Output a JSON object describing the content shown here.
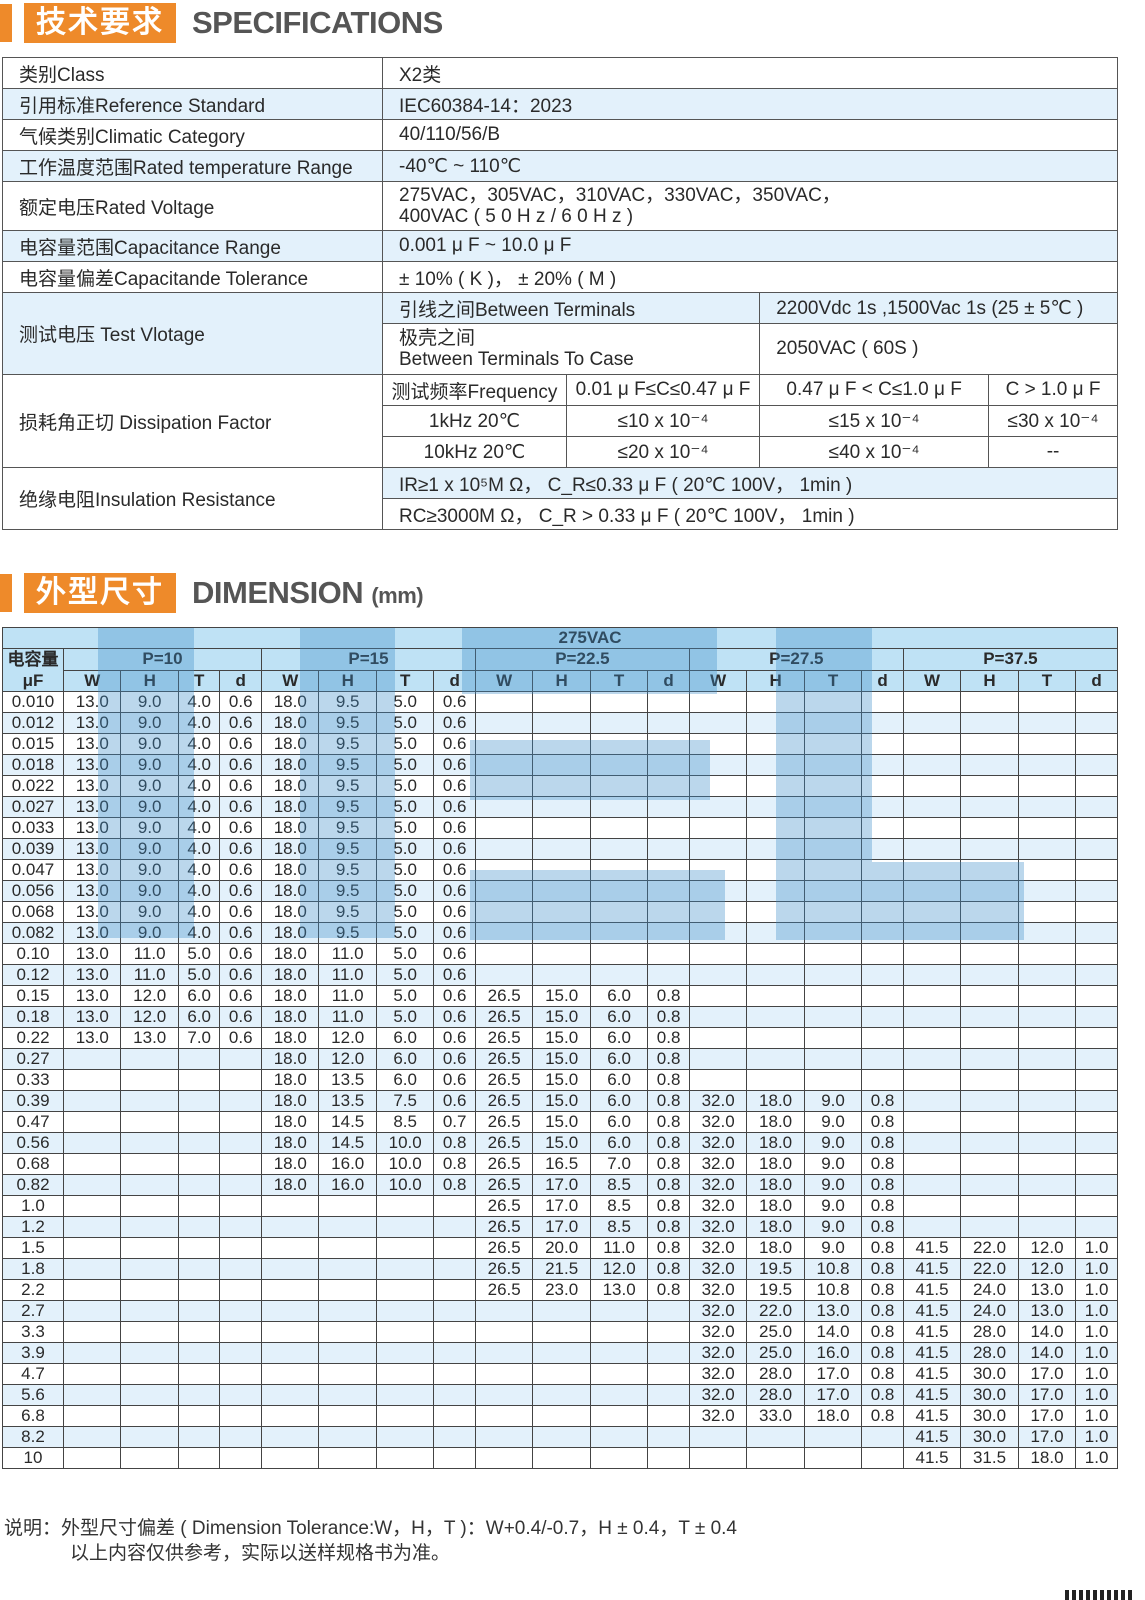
{
  "specifications": {
    "title_cn": "技术要求",
    "title_en": "SPECIFICATIONS",
    "rows": [
      {
        "label": "类别Class",
        "value": "X2类"
      },
      {
        "label": "引用标准Reference Standard",
        "value": "IEC60384-14：2023"
      },
      {
        "label": "气候类别Climatic Category",
        "value": "40/110/56/B"
      },
      {
        "label": "工作温度范围Rated temperature Range",
        "value": "-40℃ ~ 110℃"
      },
      {
        "label": "额定电压Rated Voltage",
        "value": "275VAC，305VAC，310VAC，330VAC，350VAC，",
        "value2": "400VAC ( 5 0 H z / 6 0 H z )"
      },
      {
        "label": "电容量范围Capacitance Range",
        "value": "0.001 μ F ~ 10.0 μ F"
      },
      {
        "label": "电容量偏差Capacitande Tolerance",
        "value": "± 10% ( K )， ± 20% ( M )"
      }
    ],
    "test_voltage": {
      "label": "测试电压 Test Vlotage",
      "rows": [
        {
          "condition": "引线之间Between Terminals",
          "value": "2200Vdc 1s ,1500Vac 1s (25 ± 5℃ )"
        },
        {
          "condition": "极壳之间",
          "condition2": "Between Terminals To Case",
          "value": "2050VAC ( 60S )"
        }
      ]
    },
    "dissipation": {
      "label": "损耗角正切 Dissipation Factor",
      "headers": [
        "测试频率Frequency",
        "0.01 μ F≤C≤0.47 μ F",
        "0.47 μ F < C≤1.0 μ F",
        "C > 1.0 μ F"
      ],
      "rows": [
        [
          "1kHz 20℃",
          "≤10 x 10⁻⁴",
          "≤15 x 10⁻⁴",
          "≤30 x 10⁻⁴"
        ],
        [
          "10kHz 20℃",
          "≤20 x 10⁻⁴",
          "≤40 x 10⁻⁴",
          "--"
        ]
      ]
    },
    "insulation": {
      "label": "绝缘电阻Insulation Resistance",
      "rows": [
        "IR≥1 x 10⁵M Ω， C_R≤0.33 μ F ( 20℃ 100V， 1min )",
        "RC≥3000M Ω， C_R > 0.33 μ F ( 20℃ 100V， 1min )"
      ]
    }
  },
  "dimension": {
    "title_cn": "外型尺寸",
    "title_en": "DIMENSION",
    "unit": "(mm)",
    "voltage": "275VAC",
    "cap_header": "电容量",
    "cap_unit": "μF",
    "pitches": [
      "P=10",
      "P=15",
      "P=22.5",
      "P=27.5",
      "P=37.5"
    ],
    "sub_headers": [
      "W",
      "H",
      "T",
      "d"
    ],
    "rows": [
      [
        "0.010",
        [
          "13.0",
          "9.0",
          "4.0",
          "0.6"
        ],
        [
          "18.0",
          "9.5",
          "5.0",
          "0.6"
        ],
        null,
        null,
        null
      ],
      [
        "0.012",
        [
          "13.0",
          "9.0",
          "4.0",
          "0.6"
        ],
        [
          "18.0",
          "9.5",
          "5.0",
          "0.6"
        ],
        null,
        null,
        null
      ],
      [
        "0.015",
        [
          "13.0",
          "9.0",
          "4.0",
          "0.6"
        ],
        [
          "18.0",
          "9.5",
          "5.0",
          "0.6"
        ],
        null,
        null,
        null
      ],
      [
        "0.018",
        [
          "13.0",
          "9.0",
          "4.0",
          "0.6"
        ],
        [
          "18.0",
          "9.5",
          "5.0",
          "0.6"
        ],
        null,
        null,
        null
      ],
      [
        "0.022",
        [
          "13.0",
          "9.0",
          "4.0",
          "0.6"
        ],
        [
          "18.0",
          "9.5",
          "5.0",
          "0.6"
        ],
        null,
        null,
        null
      ],
      [
        "0.027",
        [
          "13.0",
          "9.0",
          "4.0",
          "0.6"
        ],
        [
          "18.0",
          "9.5",
          "5.0",
          "0.6"
        ],
        null,
        null,
        null
      ],
      [
        "0.033",
        [
          "13.0",
          "9.0",
          "4.0",
          "0.6"
        ],
        [
          "18.0",
          "9.5",
          "5.0",
          "0.6"
        ],
        null,
        null,
        null
      ],
      [
        "0.039",
        [
          "13.0",
          "9.0",
          "4.0",
          "0.6"
        ],
        [
          "18.0",
          "9.5",
          "5.0",
          "0.6"
        ],
        null,
        null,
        null
      ],
      [
        "0.047",
        [
          "13.0",
          "9.0",
          "4.0",
          "0.6"
        ],
        [
          "18.0",
          "9.5",
          "5.0",
          "0.6"
        ],
        null,
        null,
        null
      ],
      [
        "0.056",
        [
          "13.0",
          "9.0",
          "4.0",
          "0.6"
        ],
        [
          "18.0",
          "9.5",
          "5.0",
          "0.6"
        ],
        null,
        null,
        null
      ],
      [
        "0.068",
        [
          "13.0",
          "9.0",
          "4.0",
          "0.6"
        ],
        [
          "18.0",
          "9.5",
          "5.0",
          "0.6"
        ],
        null,
        null,
        null
      ],
      [
        "0.082",
        [
          "13.0",
          "9.0",
          "4.0",
          "0.6"
        ],
        [
          "18.0",
          "9.5",
          "5.0",
          "0.6"
        ],
        null,
        null,
        null
      ],
      [
        "0.10",
        [
          "13.0",
          "11.0",
          "5.0",
          "0.6"
        ],
        [
          "18.0",
          "11.0",
          "5.0",
          "0.6"
        ],
        null,
        null,
        null
      ],
      [
        "0.12",
        [
          "13.0",
          "11.0",
          "5.0",
          "0.6"
        ],
        [
          "18.0",
          "11.0",
          "5.0",
          "0.6"
        ],
        null,
        null,
        null
      ],
      [
        "0.15",
        [
          "13.0",
          "12.0",
          "6.0",
          "0.6"
        ],
        [
          "18.0",
          "11.0",
          "5.0",
          "0.6"
        ],
        [
          "26.5",
          "15.0",
          "6.0",
          "0.8"
        ],
        null,
        null
      ],
      [
        "0.18",
        [
          "13.0",
          "12.0",
          "6.0",
          "0.6"
        ],
        [
          "18.0",
          "11.0",
          "5.0",
          "0.6"
        ],
        [
          "26.5",
          "15.0",
          "6.0",
          "0.8"
        ],
        null,
        null
      ],
      [
        "0.22",
        [
          "13.0",
          "13.0",
          "7.0",
          "0.6"
        ],
        [
          "18.0",
          "12.0",
          "6.0",
          "0.6"
        ],
        [
          "26.5",
          "15.0",
          "6.0",
          "0.8"
        ],
        null,
        null
      ],
      [
        "0.27",
        null,
        [
          "18.0",
          "12.0",
          "6.0",
          "0.6"
        ],
        [
          "26.5",
          "15.0",
          "6.0",
          "0.8"
        ],
        null,
        null
      ],
      [
        "0.33",
        null,
        [
          "18.0",
          "13.5",
          "6.0",
          "0.6"
        ],
        [
          "26.5",
          "15.0",
          "6.0",
          "0.8"
        ],
        null,
        null
      ],
      [
        "0.39",
        null,
        [
          "18.0",
          "13.5",
          "7.5",
          "0.6"
        ],
        [
          "26.5",
          "15.0",
          "6.0",
          "0.8"
        ],
        [
          "32.0",
          "18.0",
          "9.0",
          "0.8"
        ],
        null
      ],
      [
        "0.47",
        null,
        [
          "18.0",
          "14.5",
          "8.5",
          "0.7"
        ],
        [
          "26.5",
          "15.0",
          "6.0",
          "0.8"
        ],
        [
          "32.0",
          "18.0",
          "9.0",
          "0.8"
        ],
        null
      ],
      [
        "0.56",
        null,
        [
          "18.0",
          "14.5",
          "10.0",
          "0.8"
        ],
        [
          "26.5",
          "15.0",
          "6.0",
          "0.8"
        ],
        [
          "32.0",
          "18.0",
          "9.0",
          "0.8"
        ],
        null
      ],
      [
        "0.68",
        null,
        [
          "18.0",
          "16.0",
          "10.0",
          "0.8"
        ],
        [
          "26.5",
          "16.5",
          "7.0",
          "0.8"
        ],
        [
          "32.0",
          "18.0",
          "9.0",
          "0.8"
        ],
        null
      ],
      [
        "0.82",
        null,
        [
          "18.0",
          "16.0",
          "10.0",
          "0.8"
        ],
        [
          "26.5",
          "17.0",
          "8.5",
          "0.8"
        ],
        [
          "32.0",
          "18.0",
          "9.0",
          "0.8"
        ],
        null
      ],
      [
        "1.0",
        null,
        null,
        [
          "26.5",
          "17.0",
          "8.5",
          "0.8"
        ],
        [
          "32.0",
          "18.0",
          "9.0",
          "0.8"
        ],
        null
      ],
      [
        "1.2",
        null,
        null,
        [
          "26.5",
          "17.0",
          "8.5",
          "0.8"
        ],
        [
          "32.0",
          "18.0",
          "9.0",
          "0.8"
        ],
        null
      ],
      [
        "1.5",
        null,
        null,
        [
          "26.5",
          "20.0",
          "11.0",
          "0.8"
        ],
        [
          "32.0",
          "18.0",
          "9.0",
          "0.8"
        ],
        [
          "41.5",
          "22.0",
          "12.0",
          "1.0"
        ]
      ],
      [
        "1.8",
        null,
        null,
        [
          "26.5",
          "21.5",
          "12.0",
          "0.8"
        ],
        [
          "32.0",
          "19.5",
          "10.8",
          "0.8"
        ],
        [
          "41.5",
          "22.0",
          "12.0",
          "1.0"
        ]
      ],
      [
        "2.2",
        null,
        null,
        [
          "26.5",
          "23.0",
          "13.0",
          "0.8"
        ],
        [
          "32.0",
          "19.5",
          "10.8",
          "0.8"
        ],
        [
          "41.5",
          "24.0",
          "13.0",
          "1.0"
        ]
      ],
      [
        "2.7",
        null,
        null,
        null,
        [
          "32.0",
          "22.0",
          "13.0",
          "0.8"
        ],
        [
          "41.5",
          "24.0",
          "13.0",
          "1.0"
        ]
      ],
      [
        "3.3",
        null,
        null,
        null,
        [
          "32.0",
          "25.0",
          "14.0",
          "0.8"
        ],
        [
          "41.5",
          "28.0",
          "14.0",
          "1.0"
        ]
      ],
      [
        "3.9",
        null,
        null,
        null,
        [
          "32.0",
          "25.0",
          "16.0",
          "0.8"
        ],
        [
          "41.5",
          "28.0",
          "14.0",
          "1.0"
        ]
      ],
      [
        "4.7",
        null,
        null,
        null,
        [
          "32.0",
          "28.0",
          "17.0",
          "0.8"
        ],
        [
          "41.5",
          "30.0",
          "17.0",
          "1.0"
        ]
      ],
      [
        "5.6",
        null,
        null,
        null,
        [
          "32.0",
          "28.0",
          "17.0",
          "0.8"
        ],
        [
          "41.5",
          "30.0",
          "17.0",
          "1.0"
        ]
      ],
      [
        "6.8",
        null,
        null,
        null,
        [
          "32.0",
          "33.0",
          "18.0",
          "0.8"
        ],
        [
          "41.5",
          "30.0",
          "17.0",
          "1.0"
        ]
      ],
      [
        "8.2",
        null,
        null,
        null,
        null,
        [
          "41.5",
          "30.0",
          "17.0",
          "1.0"
        ]
      ],
      [
        "10",
        null,
        null,
        null,
        null,
        [
          "41.5",
          "31.5",
          "18.0",
          "1.0"
        ]
      ]
    ]
  },
  "notes": {
    "line1": "说明：外型尺寸偏差 ( Dimension Tolerance:W，H，T )：W+0.4/-0.7，H ± 0.4，T ± 0.4",
    "line2": "以上内容仅供参考，实际以送样规格书为准。"
  },
  "colors": {
    "accent": "#ee8a2a",
    "header_blue": "#bfe2f5",
    "row_blue": "#e3f1fb"
  }
}
